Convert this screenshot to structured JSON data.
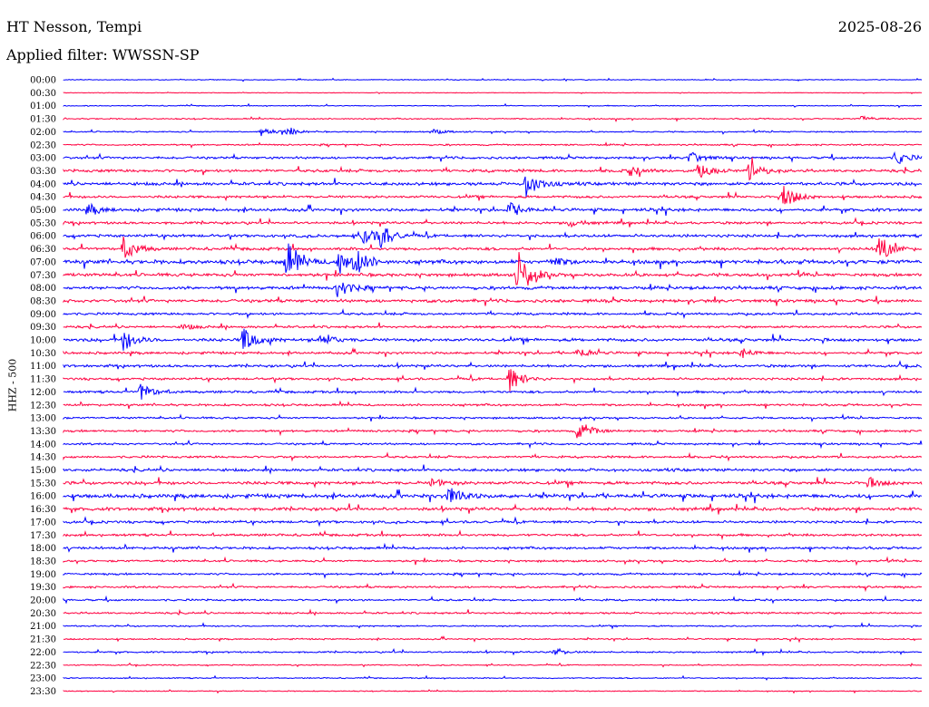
{
  "header": {
    "station": "HT Nesson, Tempi",
    "date": "2025-08-26",
    "filter": "Applied filter: WWSSN-SP"
  },
  "chart_data": {
    "type": "line",
    "title": "HT Nesson, Tempi",
    "subtitle": "Applied filter: WWSSN-SP",
    "ylabel": "HHZ - 500",
    "xlabel": "",
    "colors": [
      "#0000ff",
      "#ff0040"
    ],
    "row_times": [
      "00:00",
      "00:30",
      "01:00",
      "01:30",
      "02:00",
      "02:30",
      "03:00",
      "03:30",
      "04:00",
      "04:30",
      "05:00",
      "05:30",
      "06:00",
      "06:30",
      "07:00",
      "07:30",
      "08:00",
      "08:30",
      "09:00",
      "09:30",
      "10:00",
      "10:30",
      "11:00",
      "11:30",
      "12:00",
      "12:30",
      "13:00",
      "13:30",
      "14:00",
      "14:30",
      "15:00",
      "15:30",
      "16:00",
      "16:30",
      "17:00",
      "17:30",
      "18:00",
      "18:30",
      "19:00",
      "19:30",
      "20:00",
      "20:30",
      "21:00",
      "21:30",
      "22:00",
      "22:30",
      "23:00",
      "23:30"
    ],
    "row_noise": [
      0.5,
      0.4,
      0.6,
      0.8,
      0.8,
      1.0,
      1.5,
      1.8,
      2.0,
      1.6,
      2.0,
      1.6,
      1.8,
      1.8,
      2.5,
      2.0,
      2.0,
      2.0,
      1.5,
      1.5,
      2.0,
      1.6,
      1.6,
      1.5,
      1.5,
      1.4,
      1.2,
      1.4,
      1.3,
      1.4,
      1.8,
      2.0,
      2.5,
      2.0,
      1.6,
      1.5,
      1.6,
      1.3,
      1.3,
      1.3,
      1.2,
      1.2,
      0.9,
      0.9,
      1.0,
      0.7,
      0.7,
      0.6
    ],
    "events": [
      {
        "row": 3,
        "t": 0.93,
        "amp": 3
      },
      {
        "row": 4,
        "t": 0.23,
        "amp": 5
      },
      {
        "row": 4,
        "t": 0.26,
        "amp": 4
      },
      {
        "row": 4,
        "t": 0.43,
        "amp": 3
      },
      {
        "row": 6,
        "t": 0.73,
        "amp": 8
      },
      {
        "row": 6,
        "t": 0.97,
        "amp": 8
      },
      {
        "row": 7,
        "t": 0.66,
        "amp": 6
      },
      {
        "row": 7,
        "t": 0.74,
        "amp": 8
      },
      {
        "row": 7,
        "t": 0.8,
        "amp": 12
      },
      {
        "row": 8,
        "t": 0.54,
        "amp": 16
      },
      {
        "row": 9,
        "t": 0.84,
        "amp": 14
      },
      {
        "row": 10,
        "t": 0.03,
        "amp": 6
      },
      {
        "row": 10,
        "t": 0.52,
        "amp": 8
      },
      {
        "row": 11,
        "t": 0.59,
        "amp": 4
      },
      {
        "row": 12,
        "t": 0.35,
        "amp": 10
      },
      {
        "row": 12,
        "t": 0.37,
        "amp": 12
      },
      {
        "row": 13,
        "t": 0.07,
        "amp": 14
      },
      {
        "row": 13,
        "t": 0.95,
        "amp": 16
      },
      {
        "row": 14,
        "t": 0.26,
        "amp": 22
      },
      {
        "row": 14,
        "t": 0.32,
        "amp": 14
      },
      {
        "row": 14,
        "t": 0.34,
        "amp": 14
      },
      {
        "row": 14,
        "t": 0.57,
        "amp": 5
      },
      {
        "row": 15,
        "t": 0.53,
        "amp": 28
      },
      {
        "row": 16,
        "t": 0.32,
        "amp": 12
      },
      {
        "row": 19,
        "t": 0.14,
        "amp": 3
      },
      {
        "row": 20,
        "t": 0.07,
        "amp": 12
      },
      {
        "row": 20,
        "t": 0.21,
        "amp": 16
      },
      {
        "row": 20,
        "t": 0.3,
        "amp": 8
      },
      {
        "row": 21,
        "t": 0.6,
        "amp": 6
      },
      {
        "row": 21,
        "t": 0.79,
        "amp": 5
      },
      {
        "row": 23,
        "t": 0.52,
        "amp": 14
      },
      {
        "row": 24,
        "t": 0.09,
        "amp": 10
      },
      {
        "row": 27,
        "t": 0.6,
        "amp": 12
      },
      {
        "row": 31,
        "t": 0.43,
        "amp": 5
      },
      {
        "row": 31,
        "t": 0.94,
        "amp": 5
      },
      {
        "row": 32,
        "t": 0.45,
        "amp": 12
      },
      {
        "row": 44,
        "t": 0.57,
        "amp": 4
      }
    ]
  }
}
